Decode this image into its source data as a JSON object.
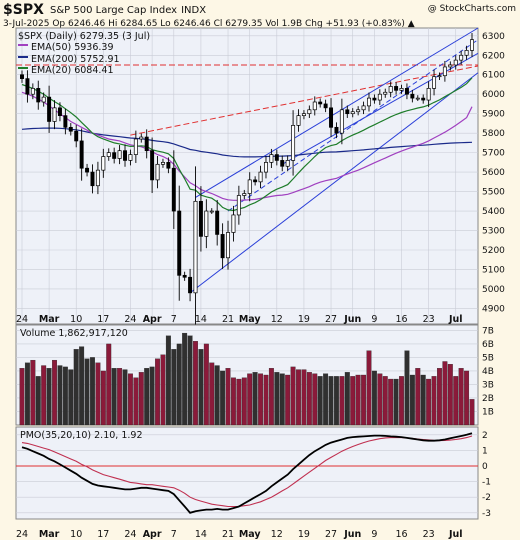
{
  "header": {
    "symbol": "$SPX",
    "name": "S&P 500 Large Cap Index",
    "exchange": "INDX",
    "copyright": "@ StockCharts.com",
    "quote_line": "3-Jul-2025  Op 6246.46  Hi 6284.65  Lo 6246.46  Cl 6279.35  Vol 1.9B  Chg +51.93 (+0.83%) ▲"
  },
  "colors": {
    "background": "#fdf7e6",
    "plot_bg": "#eef1f8",
    "grid": "#c9ccd6",
    "up_candle": "#ffffff",
    "down_candle": "#000000",
    "ema50": "#a040c0",
    "ema200": "#1a2a8a",
    "ema20": "#1e7d2a",
    "trend_channel": "#2a3fd8",
    "resistance": "#e03030",
    "vol_up": "#8b1a3a",
    "vol_down": "#303030",
    "pmo": "#000000",
    "pmo_signal": "#c03050"
  },
  "chart_data": [
    {
      "type": "candlestick",
      "title": "$SPX S&P 500 Large Cap Index INDX",
      "legend": [
        {
          "label": "$SPX (Daily) 6279.35 (3 Jul)",
          "color": "#000000"
        },
        {
          "label": "EMA(50) 5936.39",
          "color": "#a040c0"
        },
        {
          "label": "EMA(200) 5752.91",
          "color": "#1a2a8a"
        },
        {
          "label": "EMA(20) 6084.41",
          "color": "#1e7d2a"
        }
      ],
      "legend_position": "top-left",
      "y_ticks": [
        4900,
        5000,
        5100,
        5200,
        5300,
        5400,
        5500,
        5600,
        5700,
        5800,
        5900,
        6000,
        6100,
        6200,
        6300
      ],
      "ylim": [
        4820,
        6340
      ],
      "x_ticks": [
        "24",
        "Mar",
        "10",
        "17",
        "24",
        "Apr",
        "7",
        "14",
        "21",
        "May",
        "12",
        "19",
        "27",
        "Jun",
        "9",
        "16",
        "23",
        "Jul"
      ],
      "grid": true,
      "close": [
        6080,
        6000,
        6030,
        5960,
        5985,
        5860,
        5930,
        5890,
        5830,
        5810,
        5760,
        5620,
        5600,
        5530,
        5610,
        5680,
        5700,
        5670,
        5710,
        5660,
        5690,
        5770,
        5780,
        5710,
        5560,
        5640,
        5650,
        5620,
        5400,
        5070,
        5060,
        4980,
        5450,
        5270,
        5400,
        5400,
        5280,
        5160,
        5290,
        5380,
        5480,
        5490,
        5560,
        5550,
        5600,
        5650,
        5690,
        5660,
        5630,
        5660,
        5840,
        5890,
        5900,
        5920,
        5960,
        5950,
        5930,
        5830,
        5800,
        5920,
        5900,
        5910,
        5920,
        5940,
        5980,
        5970,
        6000,
        6010,
        6040,
        6020,
        6030,
        6000,
        5980,
        5980,
        5970,
        6030,
        6090,
        6095,
        6140,
        6150,
        6175,
        6200,
        6225,
        6280
      ],
      "ema50": [
        6010,
        6000,
        5990,
        5975,
        5960,
        5940,
        5920,
        5900,
        5880,
        5860,
        5845,
        5830,
        5815,
        5800,
        5790,
        5780,
        5770,
        5765,
        5760,
        5750,
        5740,
        5735,
        5730,
        5720,
        5705,
        5690,
        5680,
        5665,
        5640,
        5605,
        5575,
        5545,
        5530,
        5510,
        5500,
        5490,
        5478,
        5465,
        5458,
        5455,
        5455,
        5456,
        5458,
        5460,
        5465,
        5470,
        5475,
        5480,
        5482,
        5486,
        5495,
        5505,
        5515,
        5525,
        5538,
        5548,
        5556,
        5562,
        5568,
        5580,
        5590,
        5600,
        5610,
        5622,
        5635,
        5648,
        5660,
        5672,
        5685,
        5697,
        5708,
        5718,
        5728,
        5738,
        5748,
        5760,
        5775,
        5790,
        5805,
        5822,
        5840,
        5860,
        5880,
        5936
      ],
      "ema200": [
        5820,
        5822,
        5824,
        5825,
        5826,
        5826,
        5826,
        5825,
        5823,
        5820,
        5817,
        5812,
        5806,
        5800,
        5795,
        5791,
        5788,
        5785,
        5782,
        5778,
        5775,
        5773,
        5771,
        5768,
        5763,
        5759,
        5756,
        5752,
        5745,
        5735,
        5726,
        5716,
        5712,
        5706,
        5702,
        5698,
        5694,
        5688,
        5684,
        5681,
        5679,
        5678,
        5678,
        5678,
        5679,
        5680,
        5681,
        5682,
        5682,
        5683,
        5685,
        5688,
        5691,
        5694,
        5697,
        5700,
        5702,
        5703,
        5704,
        5706,
        5708,
        5710,
        5712,
        5714,
        5717,
        5719,
        5722,
        5724,
        5727,
        5729,
        5731,
        5733,
        5735,
        5737,
        5738,
        5740,
        5743,
        5745,
        5747,
        5749,
        5750,
        5751,
        5752,
        5753
      ],
      "ema20": [
        6050,
        6040,
        6030,
        6015,
        6000,
        5980,
        5962,
        5945,
        5925,
        5905,
        5883,
        5855,
        5828,
        5800,
        5782,
        5770,
        5760,
        5750,
        5745,
        5738,
        5732,
        5733,
        5735,
        5732,
        5715,
        5708,
        5702,
        5694,
        5670,
        5615,
        5565,
        5512,
        5507,
        5482,
        5473,
        5466,
        5447,
        5419,
        5406,
        5403,
        5411,
        5418,
        5432,
        5443,
        5459,
        5478,
        5498,
        5512,
        5523,
        5536,
        5565,
        5596,
        5625,
        5652,
        5680,
        5705,
        5726,
        5736,
        5743,
        5762,
        5777,
        5790,
        5802,
        5815,
        5830,
        5843,
        5857,
        5870,
        5884,
        5896,
        5906,
        5915,
        5922,
        5929,
        5935,
        5944,
        5958,
        5971,
        5987,
        6003,
        6019,
        6035,
        6054,
        6084
      ]
    },
    {
      "type": "bar",
      "title": "Volume 1,862,917,120",
      "y_ticks": [
        "1B",
        "2B",
        "3B",
        "4B",
        "5B",
        "6B",
        "7B"
      ],
      "ylim": [
        0,
        7.4
      ],
      "values_billions": [
        4.2,
        4.6,
        4.8,
        3.6,
        4.4,
        4.2,
        4.8,
        4.4,
        4.3,
        4.1,
        5.6,
        5.8,
        4.9,
        5.0,
        4.6,
        4.0,
        6.0,
        4.2,
        4.2,
        4.1,
        3.8,
        3.5,
        3.9,
        4.2,
        4.3,
        4.9,
        5.2,
        6.6,
        5.6,
        6.0,
        6.8,
        6.6,
        6.2,
        5.6,
        6.0,
        4.6,
        4.4,
        4.0,
        4.2,
        3.5,
        3.4,
        3.5,
        3.8,
        3.9,
        3.8,
        3.7,
        4.2,
        3.9,
        3.8,
        3.7,
        4.3,
        4.1,
        4.1,
        3.9,
        3.8,
        3.6,
        3.8,
        3.6,
        3.6,
        3.6,
        3.9,
        3.6,
        3.7,
        3.7,
        5.5,
        4.0,
        3.8,
        3.6,
        3.4,
        3.4,
        3.6,
        5.5,
        3.7,
        4.2,
        3.7,
        3.4,
        3.6,
        4.2,
        4.7,
        4.5,
        3.6,
        4.2,
        4.0,
        1.9
      ]
    },
    {
      "type": "line",
      "title": "PMO(35,20,10) 2.10, 1.92",
      "y_ticks": [
        -3,
        -2,
        -1,
        0,
        1,
        2
      ],
      "ylim": [
        -3.4,
        2.5
      ],
      "pmo": [
        1.2,
        1.1,
        0.95,
        0.8,
        0.65,
        0.45,
        0.3,
        0.1,
        -0.1,
        -0.3,
        -0.5,
        -0.75,
        -0.95,
        -1.15,
        -1.25,
        -1.3,
        -1.35,
        -1.4,
        -1.45,
        -1.5,
        -1.5,
        -1.45,
        -1.4,
        -1.4,
        -1.45,
        -1.5,
        -1.55,
        -1.6,
        -1.8,
        -2.2,
        -2.6,
        -3.0,
        -2.9,
        -2.85,
        -2.8,
        -2.8,
        -2.75,
        -2.8,
        -2.8,
        -2.7,
        -2.6,
        -2.4,
        -2.2,
        -2.0,
        -1.8,
        -1.6,
        -1.3,
        -1.05,
        -0.8,
        -0.55,
        -0.2,
        0.1,
        0.4,
        0.7,
        0.95,
        1.15,
        1.35,
        1.5,
        1.6,
        1.7,
        1.8,
        1.85,
        1.88,
        1.9,
        1.92,
        1.95,
        1.95,
        1.93,
        1.9,
        1.88,
        1.85,
        1.8,
        1.75,
        1.7,
        1.65,
        1.62,
        1.62,
        1.65,
        1.7,
        1.78,
        1.85,
        1.92,
        2.0,
        2.1
      ],
      "signal": [
        1.5,
        1.45,
        1.35,
        1.25,
        1.15,
        1.05,
        0.9,
        0.75,
        0.6,
        0.45,
        0.3,
        0.1,
        -0.05,
        -0.25,
        -0.4,
        -0.55,
        -0.65,
        -0.75,
        -0.85,
        -0.95,
        -1.05,
        -1.1,
        -1.15,
        -1.2,
        -1.2,
        -1.25,
        -1.3,
        -1.35,
        -1.4,
        -1.55,
        -1.75,
        -2.0,
        -2.15,
        -2.25,
        -2.35,
        -2.45,
        -2.5,
        -2.55,
        -2.6,
        -2.6,
        -2.6,
        -2.55,
        -2.5,
        -2.4,
        -2.3,
        -2.15,
        -2.0,
        -1.8,
        -1.6,
        -1.4,
        -1.15,
        -0.9,
        -0.65,
        -0.4,
        -0.15,
        0.1,
        0.35,
        0.55,
        0.75,
        0.95,
        1.1,
        1.25,
        1.38,
        1.5,
        1.6,
        1.68,
        1.75,
        1.8,
        1.82,
        1.83,
        1.82,
        1.8,
        1.77,
        1.73,
        1.7,
        1.67,
        1.64,
        1.63,
        1.64,
        1.66,
        1.7,
        1.75,
        1.82,
        1.92
      ]
    }
  ]
}
